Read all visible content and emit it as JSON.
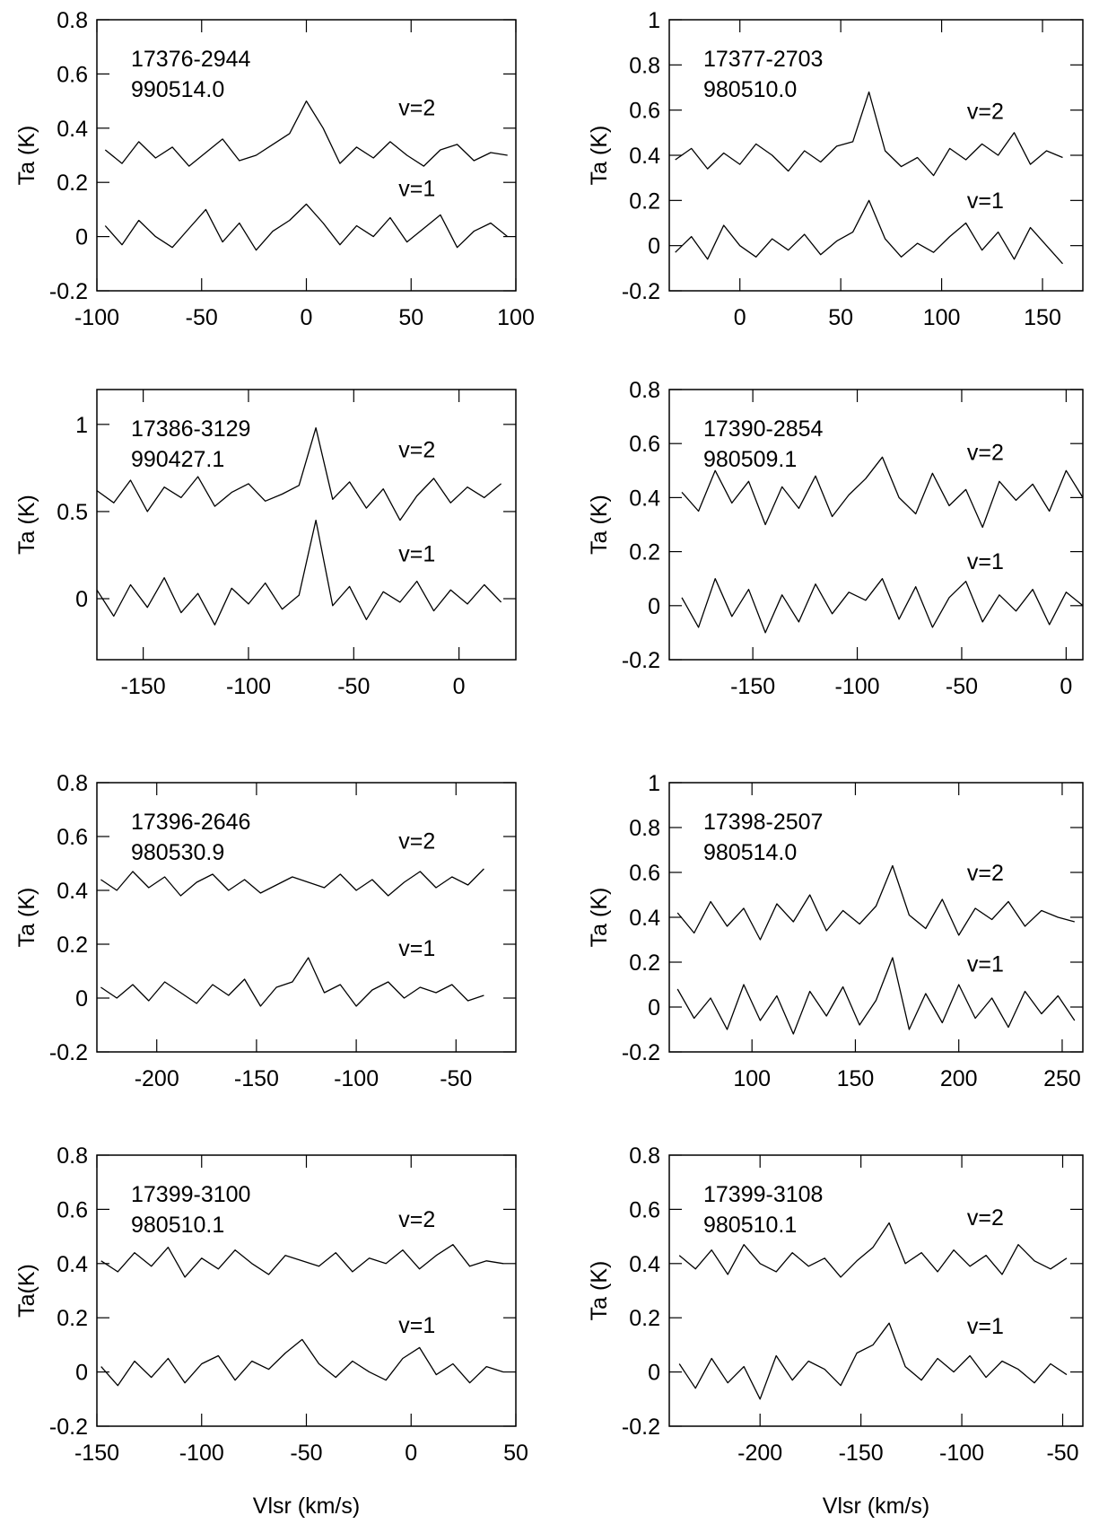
{
  "chart_data": [
    {
      "type": "line",
      "ylabel": "Ta (K)",
      "annotations": [
        "17376-2944",
        "990514.0"
      ],
      "xlim": [
        -100,
        100
      ],
      "xticks": [
        -100,
        -50,
        0,
        50,
        100
      ],
      "ylim": [
        -0.2,
        0.8
      ],
      "yticks": [
        -0.2,
        0,
        0.2,
        0.4,
        0.6,
        0.8
      ],
      "x": [
        -96,
        -88,
        -80,
        -72,
        -64,
        -56,
        -48,
        -40,
        -32,
        -24,
        -16,
        -8,
        0,
        8,
        16,
        24,
        32,
        40,
        48,
        56,
        64,
        72,
        80,
        88,
        96
      ],
      "series": [
        {
          "name": "v=2",
          "color": "#000000",
          "values": [
            0.32,
            0.27,
            0.35,
            0.29,
            0.33,
            0.26,
            0.31,
            0.36,
            0.28,
            0.3,
            0.34,
            0.38,
            0.5,
            0.4,
            0.27,
            0.33,
            0.29,
            0.35,
            0.3,
            0.26,
            0.32,
            0.34,
            0.28,
            0.31,
            0.3
          ]
        },
        {
          "name": "v=1",
          "color": "#000000",
          "values": [
            0.04,
            -0.03,
            0.06,
            0,
            -0.04,
            0.03,
            0.1,
            -0.02,
            0.05,
            -0.05,
            0.02,
            0.06,
            0.12,
            0.05,
            -0.03,
            0.04,
            0,
            0.07,
            -0.02,
            0.03,
            0.08,
            -0.04,
            0.02,
            0.05,
            0
          ]
        }
      ]
    },
    {
      "type": "line",
      "ylabel": "Ta (K)",
      "annotations": [
        "17377-2703",
        "980510.0"
      ],
      "xlim": [
        -35,
        170
      ],
      "xticks": [
        0,
        50,
        100,
        150
      ],
      "ylim": [
        -0.2,
        1
      ],
      "yticks": [
        -0.2,
        0,
        0.2,
        0.4,
        0.6,
        0.8,
        1
      ],
      "x": [
        -32,
        -24,
        -16,
        -8,
        0,
        8,
        16,
        24,
        32,
        40,
        48,
        56,
        64,
        72,
        80,
        88,
        96,
        104,
        112,
        120,
        128,
        136,
        144,
        152,
        160
      ],
      "series": [
        {
          "name": "v=2",
          "color": "#000000",
          "values": [
            0.38,
            0.43,
            0.34,
            0.41,
            0.36,
            0.45,
            0.4,
            0.33,
            0.42,
            0.37,
            0.44,
            0.46,
            0.68,
            0.42,
            0.35,
            0.39,
            0.31,
            0.43,
            0.38,
            0.45,
            0.4,
            0.5,
            0.36,
            0.42,
            0.39
          ]
        },
        {
          "name": "v=1",
          "color": "#000000",
          "values": [
            -0.03,
            0.04,
            -0.06,
            0.09,
            0,
            -0.05,
            0.03,
            -0.02,
            0.05,
            -0.04,
            0.02,
            0.06,
            0.2,
            0.03,
            -0.05,
            0.01,
            -0.03,
            0.04,
            0.1,
            -0.02,
            0.06,
            -0.06,
            0.08,
            0,
            -0.08
          ]
        }
      ]
    },
    {
      "type": "line",
      "ylabel": "Ta (K)",
      "annotations": [
        "17386-3129",
        "990427.1"
      ],
      "xlim": [
        -172,
        27
      ],
      "xticks": [
        -150,
        -100,
        -50,
        0
      ],
      "ylim": [
        -0.35,
        1.2
      ],
      "yticks": [
        0,
        0.5,
        1
      ],
      "x": [
        -172,
        -164,
        -156,
        -148,
        -140,
        -132,
        -124,
        -116,
        -108,
        -100,
        -92,
        -84,
        -76,
        -68,
        -60,
        -52,
        -44,
        -36,
        -28,
        -20,
        -12,
        -4,
        4,
        12,
        20
      ],
      "series": [
        {
          "name": "v=2",
          "color": "#000000",
          "values": [
            0.62,
            0.55,
            0.68,
            0.5,
            0.64,
            0.58,
            0.7,
            0.53,
            0.61,
            0.66,
            0.56,
            0.6,
            0.65,
            0.98,
            0.57,
            0.67,
            0.52,
            0.63,
            0.45,
            0.59,
            0.69,
            0.55,
            0.64,
            0.58,
            0.66
          ]
        },
        {
          "name": "v=1",
          "color": "#000000",
          "values": [
            0.05,
            -0.1,
            0.08,
            -0.05,
            0.12,
            -0.08,
            0.03,
            -0.15,
            0.06,
            -0.03,
            0.09,
            -0.06,
            0.02,
            0.45,
            -0.04,
            0.07,
            -0.12,
            0.04,
            -0.02,
            0.1,
            -0.07,
            0.05,
            -0.03,
            0.08,
            -0.02
          ]
        }
      ]
    },
    {
      "type": "line",
      "ylabel": "Ta (K)",
      "annotations": [
        "17390-2854",
        "980509.1"
      ],
      "xlim": [
        -190,
        8
      ],
      "xticks": [
        -150,
        -100,
        -50,
        0
      ],
      "ylim": [
        -0.2,
        0.8
      ],
      "yticks": [
        -0.2,
        0,
        0.2,
        0.4,
        0.6,
        0.8
      ],
      "x": [
        -184,
        -176,
        -168,
        -160,
        -152,
        -144,
        -136,
        -128,
        -120,
        -112,
        -104,
        -96,
        -88,
        -80,
        -72,
        -64,
        -56,
        -48,
        -40,
        -32,
        -24,
        -16,
        -8,
        0,
        8
      ],
      "series": [
        {
          "name": "v=2",
          "color": "#000000",
          "values": [
            0.42,
            0.35,
            0.5,
            0.38,
            0.46,
            0.3,
            0.44,
            0.36,
            0.48,
            0.33,
            0.41,
            0.47,
            0.55,
            0.4,
            0.34,
            0.49,
            0.37,
            0.43,
            0.29,
            0.46,
            0.39,
            0.45,
            0.35,
            0.5,
            0.4
          ]
        },
        {
          "name": "v=1",
          "color": "#000000",
          "values": [
            0.03,
            -0.08,
            0.1,
            -0.04,
            0.06,
            -0.1,
            0.04,
            -0.06,
            0.08,
            -0.03,
            0.05,
            0.02,
            0.1,
            -0.05,
            0.07,
            -0.08,
            0.03,
            0.09,
            -0.06,
            0.04,
            -0.02,
            0.06,
            -0.07,
            0.05,
            0
          ]
        }
      ]
    },
    {
      "type": "line",
      "ylabel": "Ta (K)",
      "annotations": [
        "17396-2646",
        "980530.9"
      ],
      "xlim": [
        -230,
        -20
      ],
      "xticks": [
        -200,
        -150,
        -100,
        -50
      ],
      "ylim": [
        -0.2,
        0.8
      ],
      "yticks": [
        -0.2,
        0,
        0.2,
        0.4,
        0.6,
        0.8
      ],
      "x": [
        -228,
        -220,
        -212,
        -204,
        -196,
        -188,
        -180,
        -172,
        -164,
        -156,
        -148,
        -140,
        -132,
        -124,
        -116,
        -108,
        -100,
        -92,
        -84,
        -76,
        -68,
        -60,
        -52,
        -44,
        -36
      ],
      "series": [
        {
          "name": "v=2",
          "color": "#000000",
          "values": [
            0.44,
            0.4,
            0.47,
            0.41,
            0.45,
            0.38,
            0.43,
            0.46,
            0.4,
            0.44,
            0.39,
            0.42,
            0.45,
            0.43,
            0.41,
            0.46,
            0.4,
            0.44,
            0.38,
            0.43,
            0.47,
            0.41,
            0.45,
            0.42,
            0.48
          ]
        },
        {
          "name": "v=1",
          "color": "#000000",
          "values": [
            0.04,
            0,
            0.05,
            -0.01,
            0.06,
            0.02,
            -0.02,
            0.05,
            0.01,
            0.07,
            -0.03,
            0.04,
            0.06,
            0.15,
            0.02,
            0.05,
            -0.03,
            0.03,
            0.06,
            0,
            0.04,
            0.02,
            0.05,
            -0.01,
            0.01
          ]
        }
      ]
    },
    {
      "type": "line",
      "ylabel": "Ta (K)",
      "annotations": [
        "17398-2507",
        "980514.0"
      ],
      "xlim": [
        60,
        260
      ],
      "xticks": [
        100,
        150,
        200,
        250
      ],
      "ylim": [
        -0.2,
        1
      ],
      "yticks": [
        -0.2,
        0,
        0.2,
        0.4,
        0.6,
        0.8,
        1
      ],
      "x": [
        64,
        72,
        80,
        88,
        96,
        104,
        112,
        120,
        128,
        136,
        144,
        152,
        160,
        168,
        176,
        184,
        192,
        200,
        208,
        216,
        224,
        232,
        240,
        248,
        256
      ],
      "series": [
        {
          "name": "v=2",
          "color": "#000000",
          "values": [
            0.42,
            0.33,
            0.47,
            0.36,
            0.44,
            0.3,
            0.46,
            0.38,
            0.5,
            0.34,
            0.43,
            0.37,
            0.45,
            0.63,
            0.41,
            0.35,
            0.48,
            0.32,
            0.44,
            0.39,
            0.47,
            0.36,
            0.43,
            0.4,
            0.38
          ]
        },
        {
          "name": "v=1",
          "color": "#000000",
          "values": [
            0.08,
            -0.05,
            0.04,
            -0.1,
            0.1,
            -0.06,
            0.05,
            -0.12,
            0.07,
            -0.04,
            0.09,
            -0.08,
            0.03,
            0.22,
            -0.1,
            0.06,
            -0.07,
            0.1,
            -0.05,
            0.04,
            -0.09,
            0.07,
            -0.03,
            0.05,
            -0.06
          ]
        }
      ]
    },
    {
      "type": "line",
      "ylabel": "Ta(K)",
      "xlabel": "Vlsr (km/s)",
      "annotations": [
        "17399-3100",
        "980510.1"
      ],
      "xlim": [
        -150,
        50
      ],
      "xticks": [
        -150,
        -100,
        -50,
        0,
        50
      ],
      "ylim": [
        -0.2,
        0.8
      ],
      "yticks": [
        -0.2,
        0,
        0.2,
        0.4,
        0.6,
        0.8
      ],
      "x": [
        -148,
        -140,
        -132,
        -124,
        -116,
        -108,
        -100,
        -92,
        -84,
        -76,
        -68,
        -60,
        -52,
        -44,
        -36,
        -28,
        -20,
        -12,
        -4,
        4,
        12,
        20,
        28,
        36,
        44
      ],
      "series": [
        {
          "name": "v=2",
          "color": "#000000",
          "values": [
            0.41,
            0.37,
            0.44,
            0.39,
            0.46,
            0.35,
            0.42,
            0.38,
            0.45,
            0.4,
            0.36,
            0.43,
            0.41,
            0.39,
            0.44,
            0.37,
            0.42,
            0.4,
            0.45,
            0.38,
            0.43,
            0.47,
            0.39,
            0.41,
            0.4
          ]
        },
        {
          "name": "v=1",
          "color": "#000000",
          "values": [
            0.02,
            -0.05,
            0.04,
            -0.02,
            0.05,
            -0.04,
            0.03,
            0.06,
            -0.03,
            0.04,
            0.01,
            0.07,
            0.12,
            0.03,
            -0.02,
            0.04,
            0,
            -0.03,
            0.05,
            0.09,
            -0.01,
            0.03,
            -0.04,
            0.02,
            0
          ]
        }
      ]
    },
    {
      "type": "line",
      "ylabel": "Ta (K)",
      "xlabel": "Vlsr (km/s)",
      "annotations": [
        "17399-3108",
        "980510.1"
      ],
      "xlim": [
        -245,
        -40
      ],
      "xticks": [
        -200,
        -150,
        -100,
        -50
      ],
      "ylim": [
        -0.2,
        0.8
      ],
      "yticks": [
        -0.2,
        0,
        0.2,
        0.4,
        0.6,
        0.8
      ],
      "x": [
        -240,
        -232,
        -224,
        -216,
        -208,
        -200,
        -192,
        -184,
        -176,
        -168,
        -160,
        -152,
        -144,
        -136,
        -128,
        -120,
        -112,
        -104,
        -96,
        -88,
        -80,
        -72,
        -64,
        -56,
        -48
      ],
      "series": [
        {
          "name": "v=2",
          "color": "#000000",
          "values": [
            0.43,
            0.38,
            0.45,
            0.36,
            0.47,
            0.4,
            0.37,
            0.44,
            0.39,
            0.42,
            0.35,
            0.41,
            0.46,
            0.55,
            0.4,
            0.44,
            0.37,
            0.45,
            0.39,
            0.43,
            0.36,
            0.47,
            0.41,
            0.38,
            0.42
          ]
        },
        {
          "name": "v=1",
          "color": "#000000",
          "values": [
            0.03,
            -0.06,
            0.05,
            -0.04,
            0.02,
            -0.1,
            0.06,
            -0.03,
            0.04,
            0.01,
            -0.05,
            0.07,
            0.1,
            0.18,
            0.02,
            -0.03,
            0.05,
            0,
            0.06,
            -0.02,
            0.04,
            0.01,
            -0.04,
            0.03,
            -0.01
          ]
        }
      ]
    }
  ]
}
